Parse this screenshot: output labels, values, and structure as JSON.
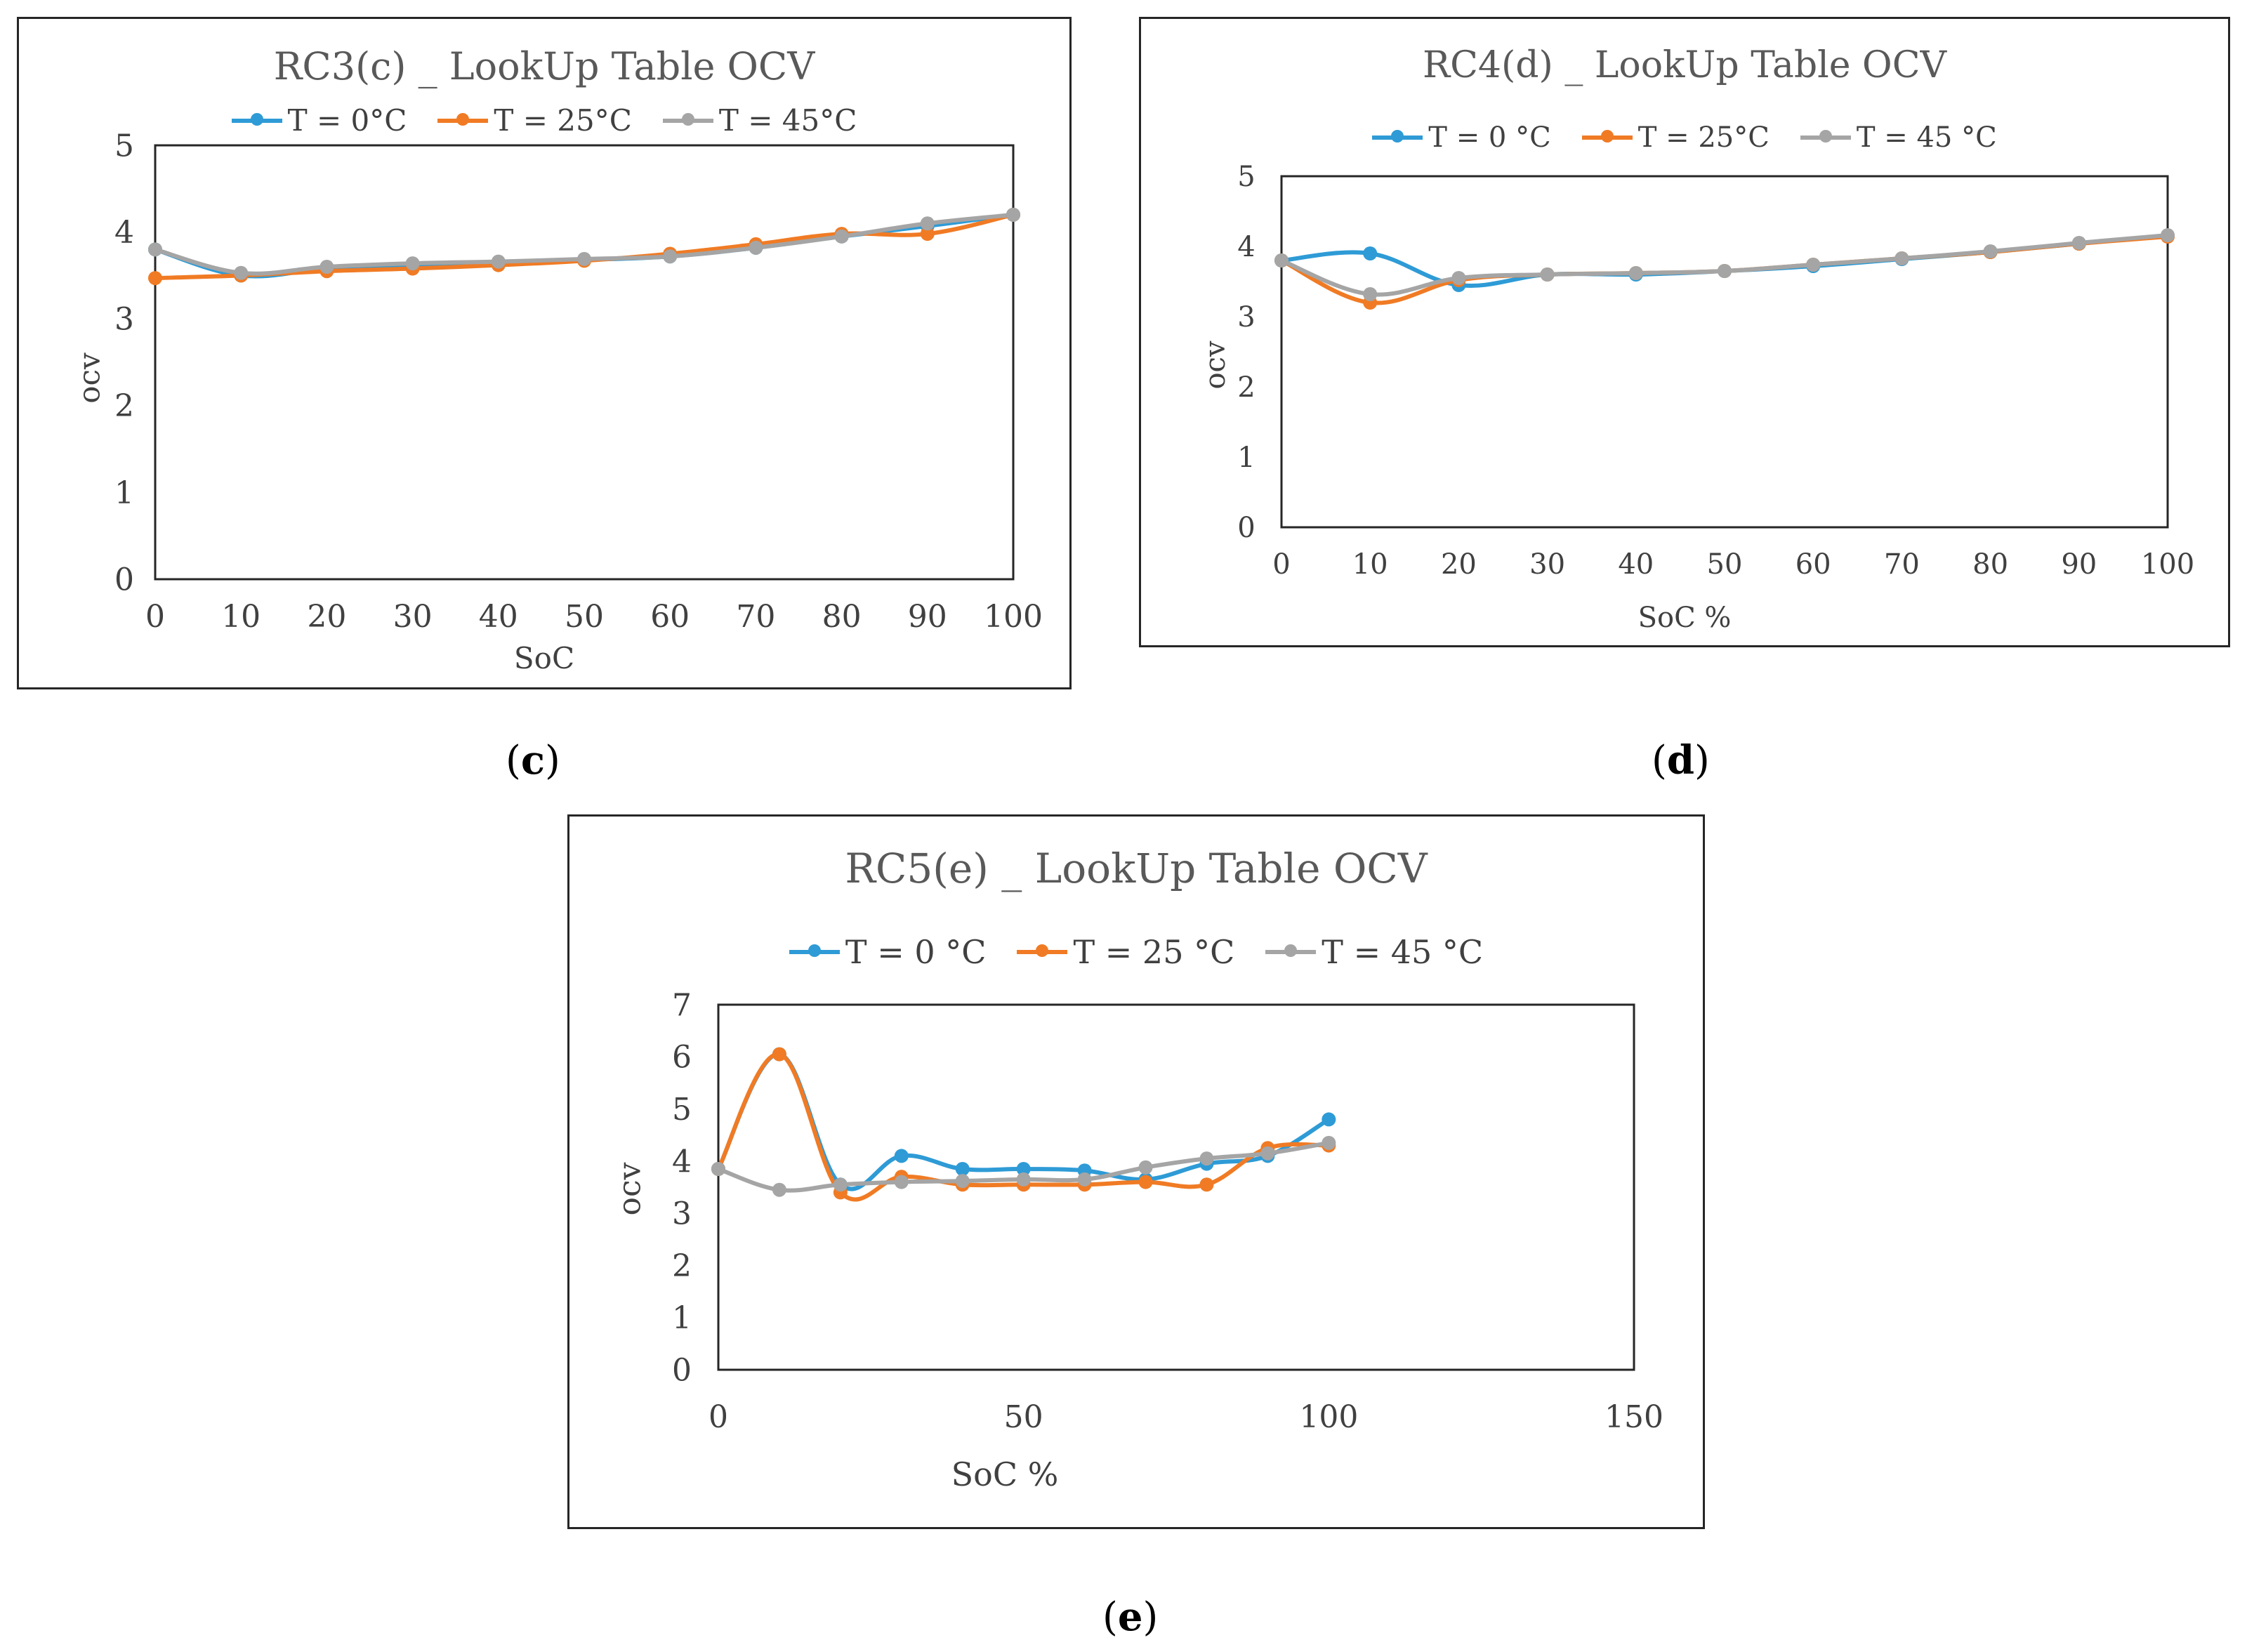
{
  "colors": {
    "t0": "#2E9BD6",
    "t25": "#F07B24",
    "t45": "#A5A5A5"
  },
  "chart_data": [
    {
      "id": "c",
      "type": "line",
      "title": "RC3(c) _ LookUp Table OCV",
      "xlabel": "SoC",
      "ylabel": "ocv",
      "x": [
        0,
        10,
        20,
        30,
        40,
        50,
        60,
        70,
        80,
        90,
        100
      ],
      "xlim": [
        0,
        100
      ],
      "ylim": [
        0,
        5
      ],
      "yticks": [
        0,
        1,
        2,
        3,
        4,
        5
      ],
      "xticks": [
        0,
        10,
        20,
        30,
        40,
        50,
        60,
        70,
        80,
        90,
        100
      ],
      "x_is_category": true,
      "legend_position": "top",
      "series": [
        {
          "name": "T = 0°C",
          "color": "#2E9BD6",
          "values": [
            3.8,
            3.5,
            3.58,
            3.62,
            3.65,
            3.68,
            3.72,
            3.82,
            3.95,
            4.07,
            4.2
          ]
        },
        {
          "name": "T = 25°C",
          "color": "#F07B24",
          "values": [
            3.47,
            3.5,
            3.55,
            3.58,
            3.62,
            3.67,
            3.75,
            3.86,
            3.98,
            3.98,
            4.2
          ]
        },
        {
          "name": "T = 45°C",
          "color": "#A5A5A5",
          "values": [
            3.8,
            3.53,
            3.6,
            3.64,
            3.66,
            3.69,
            3.72,
            3.82,
            3.95,
            4.1,
            4.2
          ]
        }
      ],
      "caption": "c"
    },
    {
      "id": "d",
      "type": "line",
      "title": "RC4(d) _ LookUp Table OCV",
      "xlabel": "SoC %",
      "ylabel": "ocv",
      "x": [
        0,
        10,
        20,
        30,
        40,
        50,
        60,
        70,
        80,
        90,
        100
      ],
      "xlim": [
        0,
        100
      ],
      "ylim": [
        0,
        5
      ],
      "yticks": [
        0,
        1,
        2,
        3,
        4,
        5
      ],
      "xticks": [
        0,
        10,
        20,
        30,
        40,
        50,
        60,
        70,
        80,
        90,
        100
      ],
      "x_is_category": true,
      "legend_position": "top",
      "series": [
        {
          "name": "T = 0 °C",
          "color": "#2E9BD6",
          "values": [
            3.8,
            3.9,
            3.45,
            3.6,
            3.6,
            3.65,
            3.72,
            3.82,
            3.92,
            4.04,
            4.15
          ]
        },
        {
          "name": "T = 25°C",
          "color": "#F07B24",
          "values": [
            3.8,
            3.2,
            3.52,
            3.6,
            3.62,
            3.65,
            3.74,
            3.83,
            3.92,
            4.04,
            4.14
          ]
        },
        {
          "name": "T = 45 °C",
          "color": "#A5A5A5",
          "values": [
            3.8,
            3.32,
            3.55,
            3.6,
            3.62,
            3.65,
            3.74,
            3.83,
            3.93,
            4.05,
            4.16
          ]
        }
      ],
      "caption": "d"
    },
    {
      "id": "e",
      "type": "scatter",
      "title": "RC5(e) _ LookUp Table OCV",
      "xlabel": "SoC %",
      "ylabel": "ocv",
      "xlim": [
        0,
        150
      ],
      "ylim": [
        0,
        7
      ],
      "yticks": [
        0,
        1,
        2,
        3,
        4,
        5,
        6,
        7
      ],
      "xticks": [
        0,
        50,
        100,
        150
      ],
      "x_is_category": false,
      "legend_position": "top",
      "series": [
        {
          "name": "T = 0 °C",
          "color": "#2E9BD6",
          "x": [
            0,
            10,
            20,
            30,
            40,
            50,
            60,
            70,
            80,
            90,
            100
          ],
          "values": [
            3.85,
            6.05,
            3.55,
            4.1,
            3.85,
            3.85,
            3.82,
            3.65,
            3.95,
            4.1,
            4.8
          ]
        },
        {
          "name": "T = 25 °C",
          "color": "#F07B24",
          "x": [
            0,
            10,
            20,
            30,
            40,
            50,
            60,
            70,
            80,
            90,
            100
          ],
          "values": [
            3.85,
            6.05,
            3.4,
            3.7,
            3.55,
            3.55,
            3.55,
            3.6,
            3.55,
            4.25,
            4.3
          ]
        },
        {
          "name": "T = 45 °C",
          "color": "#A5A5A5",
          "x": [
            0,
            10,
            20,
            30,
            40,
            50,
            60,
            70,
            80,
            90,
            100
          ],
          "values": [
            3.85,
            3.45,
            3.55,
            3.6,
            3.62,
            3.65,
            3.65,
            3.88,
            4.05,
            4.15,
            4.35
          ]
        }
      ],
      "caption": "e"
    }
  ]
}
